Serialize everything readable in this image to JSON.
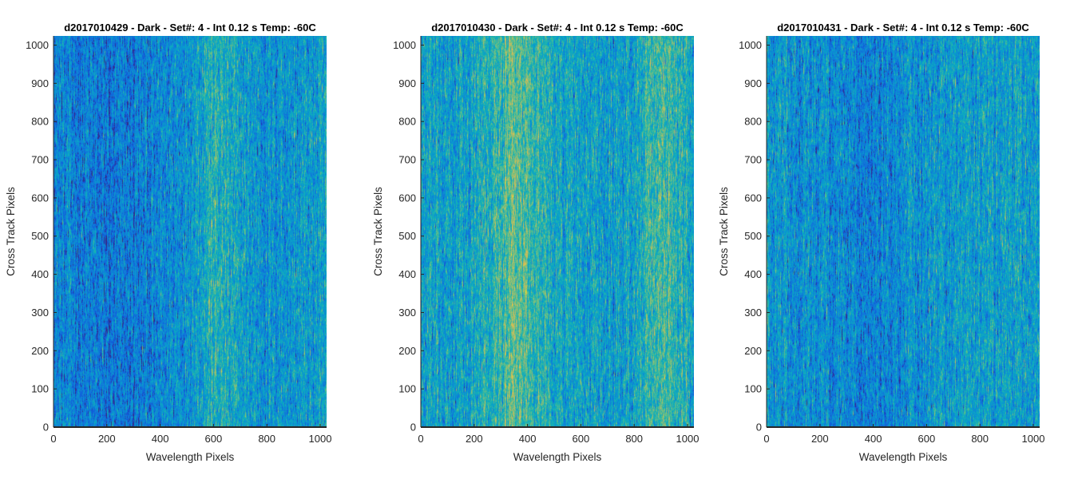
{
  "chart_data": [
    {
      "type": "heatmap",
      "title": "d2017010429 - Dark - Set#: 4 - Int 0.12 s Temp: -60C",
      "xlabel": "Wavelength Pixels",
      "ylabel": "Cross Track Pixels",
      "xlim": [
        0,
        1024
      ],
      "ylim": [
        0,
        1024
      ],
      "xticks": [
        0,
        200,
        400,
        600,
        800,
        1000
      ],
      "yticks": [
        0,
        100,
        200,
        300,
        400,
        500,
        600,
        700,
        800,
        900,
        1000
      ],
      "colormap": "parula",
      "column_intensity": [
        [
          0,
          0.3
        ],
        [
          100,
          0.25
        ],
        [
          200,
          0.22
        ],
        [
          300,
          0.24
        ],
        [
          400,
          0.28
        ],
        [
          500,
          0.36
        ],
        [
          600,
          0.5
        ],
        [
          650,
          0.46
        ],
        [
          700,
          0.4
        ],
        [
          800,
          0.34
        ],
        [
          900,
          0.37
        ],
        [
          1024,
          0.38
        ]
      ]
    },
    {
      "type": "heatmap",
      "title": "d2017010430 - Dark - Set#: 4 - Int 0.12 s Temp: -60C",
      "xlabel": "Wavelength Pixels",
      "ylabel": "Cross Track Pixels",
      "xlim": [
        0,
        1024
      ],
      "ylim": [
        0,
        1024
      ],
      "xticks": [
        0,
        200,
        400,
        600,
        800,
        1000
      ],
      "yticks": [
        0,
        100,
        200,
        300,
        400,
        500,
        600,
        700,
        800,
        900,
        1000
      ],
      "colormap": "parula",
      "column_intensity": [
        [
          0,
          0.4
        ],
        [
          100,
          0.38
        ],
        [
          200,
          0.42
        ],
        [
          300,
          0.55
        ],
        [
          350,
          0.62
        ],
        [
          400,
          0.58
        ],
        [
          500,
          0.44
        ],
        [
          600,
          0.4
        ],
        [
          700,
          0.38
        ],
        [
          800,
          0.42
        ],
        [
          900,
          0.58
        ],
        [
          950,
          0.55
        ],
        [
          1024,
          0.45
        ]
      ]
    },
    {
      "type": "heatmap",
      "title": "d2017010431 - Dark - Set#: 4 - Int 0.12 s Temp: -60C",
      "xlabel": "Wavelength Pixels",
      "ylabel": "Cross Track Pixels",
      "xlim": [
        0,
        1024
      ],
      "ylim": [
        0,
        1024
      ],
      "xticks": [
        0,
        200,
        400,
        600,
        800,
        1000
      ],
      "yticks": [
        0,
        100,
        200,
        300,
        400,
        500,
        600,
        700,
        800,
        900,
        1000
      ],
      "colormap": "parula",
      "column_intensity": [
        [
          0,
          0.38
        ],
        [
          100,
          0.34
        ],
        [
          200,
          0.33
        ],
        [
          300,
          0.3
        ],
        [
          400,
          0.27
        ],
        [
          500,
          0.32
        ],
        [
          600,
          0.36
        ],
        [
          700,
          0.37
        ],
        [
          800,
          0.38
        ],
        [
          900,
          0.4
        ],
        [
          1024,
          0.4
        ]
      ]
    }
  ]
}
